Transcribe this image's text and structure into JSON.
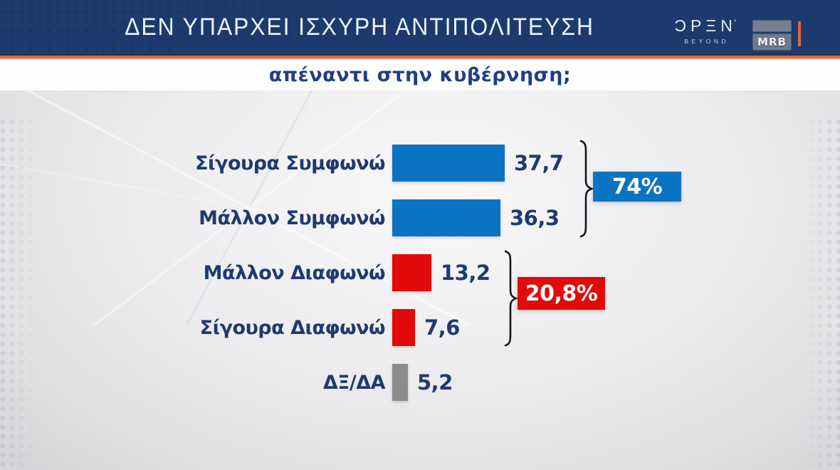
{
  "header": {
    "title": "ΔΕΝ ΥΠΑΡΧΕΙ ΙΣΧΥΡΗ ΑΝΤΙΠΟΛΙΤΕΥΣΗ",
    "open_logo": {
      "name": "OPEN",
      "display": "ƆPΞN",
      "tick": "’",
      "tagline": "BEYOND"
    },
    "mrb_logo": {
      "text": "MRB"
    }
  },
  "question": {
    "subtitle": "απέναντι στην κυβέρνηση;"
  },
  "chart": {
    "rows": [
      {
        "label": "Σίγουρα Συμφωνώ",
        "value": 37.7,
        "value_label": "37,7",
        "group": "agree"
      },
      {
        "label": "Μάλλον Συμφωνώ",
        "value": 36.3,
        "value_label": "36,3",
        "group": "agree"
      },
      {
        "label": "Μάλλον Διαφωνώ",
        "value": 13.2,
        "value_label": "13,2",
        "group": "disagree"
      },
      {
        "label": "Σίγουρα Διαφωνώ",
        "value": 7.6,
        "value_label": "7,6",
        "group": "disagree"
      },
      {
        "label": "ΔΞ/ΔΑ",
        "value": 5.2,
        "value_label": "5,2",
        "group": "neutral"
      }
    ],
    "summaries": [
      {
        "label": "74%",
        "group": "agree"
      },
      {
        "label": "20,8%",
        "group": "disagree"
      }
    ]
  },
  "colors": {
    "agree": "#0b74c2",
    "disagree": "#e20a0a",
    "neutral": "#8c8c8c",
    "label_navy": "#1e3a70",
    "header_navy": "#1c3a6e",
    "accent_orange": "#e0693a"
  },
  "chart_data": {
    "type": "bar",
    "orientation": "horizontal",
    "title": "ΔΕΝ ΥΠΑΡΧΕΙ ΙΣΧΥΡΗ ΑΝΤΙΠΟΛΙΤΕΥΣΗ",
    "subtitle": "απέναντι στην κυβέρνηση;",
    "categories": [
      "Σίγουρα Συμφωνώ",
      "Μάλλον Συμφωνώ",
      "Μάλλον Διαφωνώ",
      "Σίγουρα Διαφωνώ",
      "ΔΞ/ΔΑ"
    ],
    "values": [
      37.7,
      36.3,
      13.2,
      7.6,
      5.2
    ],
    "value_labels": [
      "37,7",
      "36,3",
      "13,2",
      "7,6",
      "5,2"
    ],
    "bar_colors": [
      "#0b74c2",
      "#0b74c2",
      "#e20a0a",
      "#e20a0a",
      "#8c8c8c"
    ],
    "groups": [
      {
        "label": "74%",
        "covers": [
          "Σίγουρα Συμφωνώ",
          "Μάλλον Συμφωνώ"
        ],
        "color": "#0b74c2"
      },
      {
        "label": "20,8%",
        "covers": [
          "Μάλλον Διαφωνώ",
          "Σίγουρα Διαφωνώ"
        ],
        "color": "#e20a0a"
      }
    ],
    "xlim": [
      0,
      40
    ],
    "grid": false,
    "legend": false,
    "branding": [
      "OPEN BEYOND",
      "MRB"
    ]
  }
}
